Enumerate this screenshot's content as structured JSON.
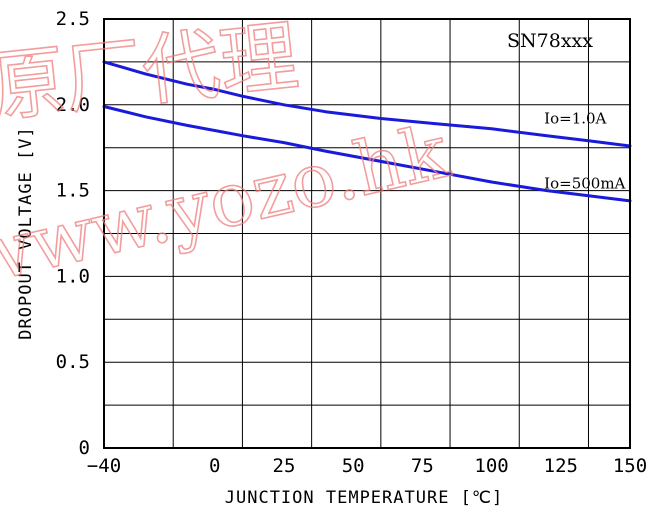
{
  "watermark": {
    "line1": "原厂代理",
    "line2": "www.yozo.hk",
    "color": "#ef7d7d"
  },
  "chart_data": {
    "type": "line",
    "title": "SN78xxx",
    "xlabel": "JUNCTION TEMPERATURE [℃]",
    "ylabel": "DROPOUT VOLTAGE [V]",
    "xlim": [
      -40,
      150
    ],
    "ylim": [
      0,
      2.5
    ],
    "x_ticks": [
      -40,
      0,
      25,
      50,
      75,
      100,
      125,
      150
    ],
    "x_tick_labels": [
      "−40",
      "0",
      "25",
      "50",
      "75",
      "100",
      "125",
      "150"
    ],
    "y_ticks": [
      0,
      0.5,
      1.0,
      1.5,
      2.0,
      2.5
    ],
    "y_tick_labels": [
      "0",
      "0.5",
      "1.0",
      "1.5",
      "2.0",
      "2.5"
    ],
    "x_grid": [
      -40,
      -15,
      10,
      35,
      60,
      85,
      110,
      135
    ],
    "y_grid_step": 0.25,
    "grid": true,
    "line_color": "#1a1adb",
    "series": [
      {
        "name": "Io=1.0A",
        "x": [
          -40,
          -25,
          -10,
          0,
          10,
          25,
          40,
          60,
          80,
          100,
          120,
          135,
          150
        ],
        "y": [
          2.25,
          2.18,
          2.12,
          2.09,
          2.05,
          2.0,
          1.96,
          1.92,
          1.89,
          1.86,
          1.82,
          1.79,
          1.76
        ]
      },
      {
        "name": "Io=500mA",
        "x": [
          -40,
          -25,
          -10,
          0,
          10,
          25,
          40,
          60,
          80,
          100,
          120,
          135,
          150
        ],
        "y": [
          1.99,
          1.93,
          1.88,
          1.85,
          1.82,
          1.78,
          1.73,
          1.67,
          1.61,
          1.55,
          1.5,
          1.47,
          1.44
        ]
      }
    ],
    "annotations": [
      {
        "text": "Io=1.0A",
        "x": 119,
        "y": 1.92
      },
      {
        "text": "Io=500mA",
        "x": 119,
        "y": 1.54
      }
    ]
  }
}
